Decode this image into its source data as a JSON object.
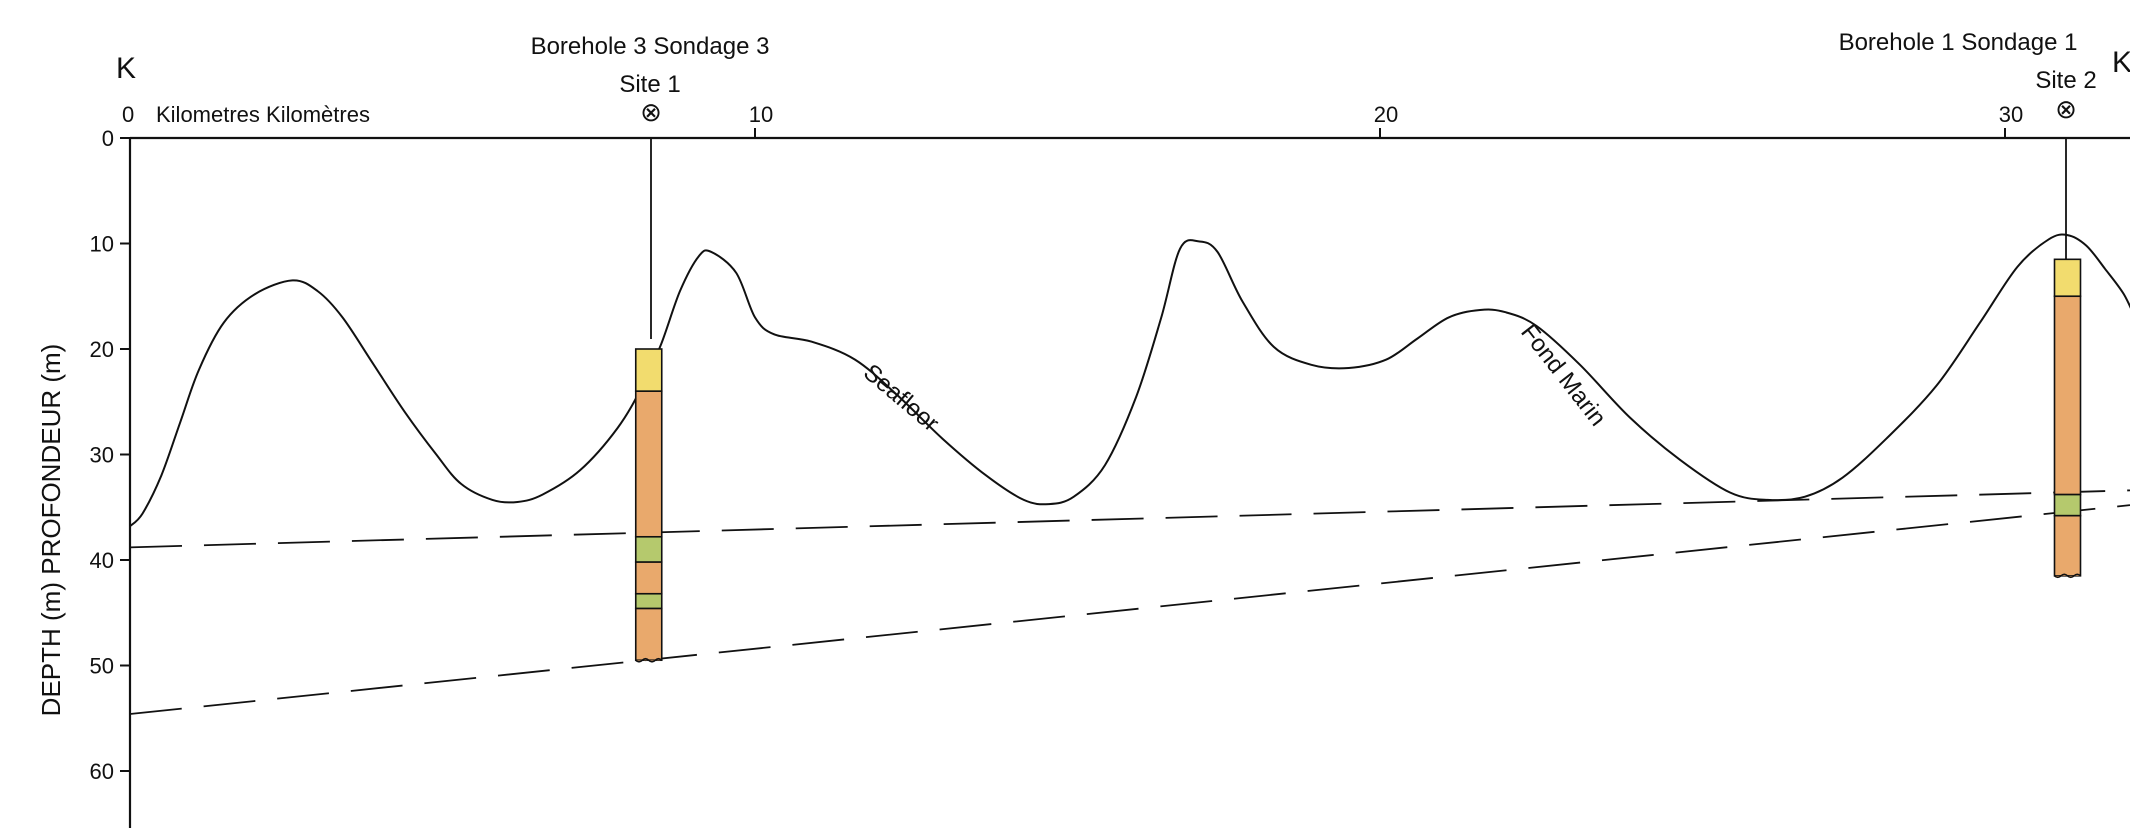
{
  "section_end_left": "K",
  "section_end_right": "K",
  "distance_axis": {
    "label": "Kilometres Kilomètres",
    "origin_label": "0",
    "ticks": [
      {
        "km": 10,
        "label": "10"
      },
      {
        "km": 20,
        "label": "20"
      },
      {
        "km": 30,
        "label": "30"
      }
    ]
  },
  "depth_axis": {
    "label": "DEPTH (m)  PROFONDEUR (m)",
    "ticks": [
      {
        "m": 0,
        "label": "0"
      },
      {
        "m": 10,
        "label": "10"
      },
      {
        "m": 20,
        "label": "20"
      },
      {
        "m": 30,
        "label": "30"
      },
      {
        "m": 40,
        "label": "40"
      },
      {
        "m": 50,
        "label": "50"
      },
      {
        "m": 60,
        "label": "60"
      }
    ]
  },
  "boreholes": [
    {
      "title": "Borehole 3  Sondage 3",
      "site": "Site 1",
      "site_symbol": "⊗",
      "km": 8.3,
      "seafloor_depth_m": 20,
      "bottom_depth_m": 49.5,
      "layers": [
        {
          "top_m": 20,
          "bottom_m": 24,
          "unit": "yellow"
        },
        {
          "top_m": 24,
          "bottom_m": 37.8,
          "unit": "orange"
        },
        {
          "top_m": 37.8,
          "bottom_m": 40.2,
          "unit": "green"
        },
        {
          "top_m": 40.2,
          "bottom_m": 43.2,
          "unit": "orange"
        },
        {
          "top_m": 43.2,
          "bottom_m": 44.6,
          "unit": "green"
        },
        {
          "top_m": 44.6,
          "bottom_m": 49.5,
          "unit": "orange"
        }
      ]
    },
    {
      "title": "Borehole 1  Sondage 1",
      "site": "Site 2",
      "site_symbol": "⊗",
      "km": 31.0,
      "seafloor_depth_m": 11.5,
      "bottom_depth_m": 41.5,
      "layers": [
        {
          "top_m": 11.5,
          "bottom_m": 15,
          "unit": "yellow"
        },
        {
          "top_m": 15,
          "bottom_m": 33.8,
          "unit": "orange"
        },
        {
          "top_m": 33.8,
          "bottom_m": 35.8,
          "unit": "green"
        },
        {
          "top_m": 35.8,
          "bottom_m": 41.5,
          "unit": "orange"
        }
      ]
    }
  ],
  "curve_labels": {
    "seafloor": "Seafloor",
    "fond_marin": "Fond Marin"
  },
  "colors": {
    "yellow": "#f2dc6e",
    "orange": "#e9a96c",
    "green": "#b5c96d",
    "line": "#111111"
  },
  "seafloor_profile": [
    [
      0.0,
      36.8
    ],
    [
      0.2,
      35.6
    ],
    [
      0.5,
      32
    ],
    [
      0.8,
      27
    ],
    [
      1.1,
      22
    ],
    [
      1.5,
      17.5
    ],
    [
      2.0,
      14.8
    ],
    [
      2.6,
      13.5
    ],
    [
      3.0,
      14.5
    ],
    [
      3.4,
      17
    ],
    [
      3.9,
      21.5
    ],
    [
      4.4,
      26
    ],
    [
      4.9,
      30
    ],
    [
      5.3,
      32.8
    ],
    [
      5.8,
      34.3
    ],
    [
      6.2,
      34.5
    ],
    [
      6.6,
      33.8
    ],
    [
      7.2,
      31.5
    ],
    [
      7.8,
      27.5
    ],
    [
      8.2,
      23.5
    ],
    [
      8.5,
      19.5
    ],
    [
      8.8,
      14.5
    ],
    [
      9.1,
      11.2
    ],
    [
      9.3,
      10.8
    ],
    [
      9.7,
      12.8
    ],
    [
      10.0,
      17
    ],
    [
      10.3,
      18.6
    ],
    [
      10.9,
      19.3
    ],
    [
      11.6,
      21
    ],
    [
      12.3,
      24.5
    ],
    [
      13.0,
      28.5
    ],
    [
      13.7,
      32
    ],
    [
      14.3,
      34.3
    ],
    [
      14.7,
      34.7
    ],
    [
      15.1,
      34
    ],
    [
      15.6,
      31
    ],
    [
      16.1,
      24.5
    ],
    [
      16.5,
      17
    ],
    [
      16.8,
      10.5
    ],
    [
      17.1,
      9.8
    ],
    [
      17.4,
      10.8
    ],
    [
      17.8,
      15.5
    ],
    [
      18.3,
      19.8
    ],
    [
      18.9,
      21.5
    ],
    [
      19.5,
      21.8
    ],
    [
      20.1,
      21
    ],
    [
      20.6,
      19
    ],
    [
      21.1,
      17
    ],
    [
      21.6,
      16.3
    ],
    [
      22.0,
      16.5
    ],
    [
      22.5,
      17.8
    ],
    [
      23.2,
      21.5
    ],
    [
      24.0,
      26.5
    ],
    [
      24.8,
      30.5
    ],
    [
      25.6,
      33.6
    ],
    [
      26.2,
      34.3
    ],
    [
      26.8,
      34
    ],
    [
      27.4,
      32.2
    ],
    [
      28.1,
      28.5
    ],
    [
      28.9,
      23.5
    ],
    [
      29.6,
      17.5
    ],
    [
      30.2,
      12.2
    ],
    [
      30.7,
      9.6
    ],
    [
      31.0,
      9.2
    ],
    [
      31.3,
      10.2
    ],
    [
      31.6,
      12.4
    ],
    [
      31.9,
      14.8
    ],
    [
      32.1,
      17.3
    ]
  ],
  "dashed_horizons": [
    {
      "from": [
        0,
        38.8
      ],
      "to": [
        32.5,
        33.4
      ]
    },
    {
      "from": [
        0,
        54.6
      ],
      "to": [
        32.5,
        34.8
      ]
    }
  ]
}
